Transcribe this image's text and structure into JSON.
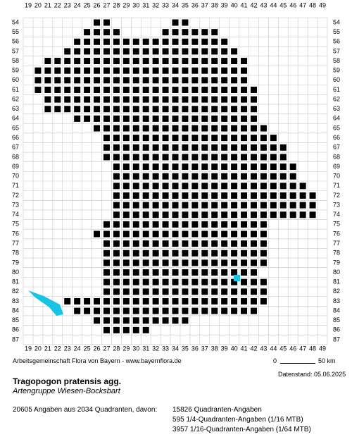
{
  "x_labels": [
    19,
    20,
    21,
    22,
    23,
    24,
    25,
    26,
    27,
    28,
    29,
    30,
    31,
    32,
    33,
    34,
    35,
    36,
    37,
    38,
    39,
    40,
    41,
    42,
    43,
    44,
    45,
    46,
    47,
    48,
    49
  ],
  "y_labels": [
    54,
    55,
    56,
    57,
    58,
    59,
    60,
    61,
    62,
    63,
    64,
    65,
    66,
    67,
    68,
    69,
    70,
    71,
    72,
    73,
    74,
    75,
    76,
    77,
    78,
    79,
    80,
    81,
    82,
    83,
    84,
    85,
    86,
    87
  ],
  "quadrant_rows": [
    [
      54,
      26,
      27
    ],
    [
      54,
      34,
      35
    ],
    [
      55,
      25,
      28
    ],
    [
      55,
      33,
      38
    ],
    [
      56,
      24,
      39
    ],
    [
      57,
      23,
      40
    ],
    [
      58,
      21,
      41
    ],
    [
      59,
      20,
      41
    ],
    [
      60,
      20,
      41
    ],
    [
      61,
      20,
      42
    ],
    [
      62,
      21,
      42
    ],
    [
      63,
      21,
      42
    ],
    [
      64,
      24,
      42
    ],
    [
      65,
      26,
      43
    ],
    [
      66,
      27,
      44
    ],
    [
      67,
      27,
      45
    ],
    [
      68,
      27,
      45
    ],
    [
      69,
      28,
      46
    ],
    [
      70,
      28,
      46
    ],
    [
      71,
      28,
      47
    ],
    [
      72,
      28,
      48
    ],
    [
      73,
      28,
      48
    ],
    [
      74,
      28,
      48
    ],
    [
      75,
      27,
      43
    ],
    [
      76,
      26,
      43
    ],
    [
      77,
      27,
      43
    ],
    [
      78,
      27,
      43
    ],
    [
      79,
      27,
      43
    ],
    [
      80,
      27,
      42
    ],
    [
      81,
      27,
      43
    ],
    [
      82,
      27,
      43
    ],
    [
      83,
      23,
      43
    ],
    [
      84,
      24,
      42
    ],
    [
      85,
      26,
      35
    ],
    [
      86,
      27,
      31
    ]
  ],
  "credit": "Arbeitsgemeinschaft Flora von Bayern - www.bayernflora.de",
  "scale": {
    "start": "0",
    "end": "50 km"
  },
  "date": "Datenstand: 05.06.2025",
  "title": "Tragopogon pratensis agg.",
  "subtitle": "Artengruppe Wiesen-Bocksbart",
  "summary": "20605 Angaben aus 2034 Quadranten, davon:",
  "details": [
    "15826 Quadranten-Angaben",
    "595 1/4-Quadranten-Angaben (1/16 MTB)",
    "3957 1/16-Quadranten-Angaben (1/64 MTB)"
  ]
}
